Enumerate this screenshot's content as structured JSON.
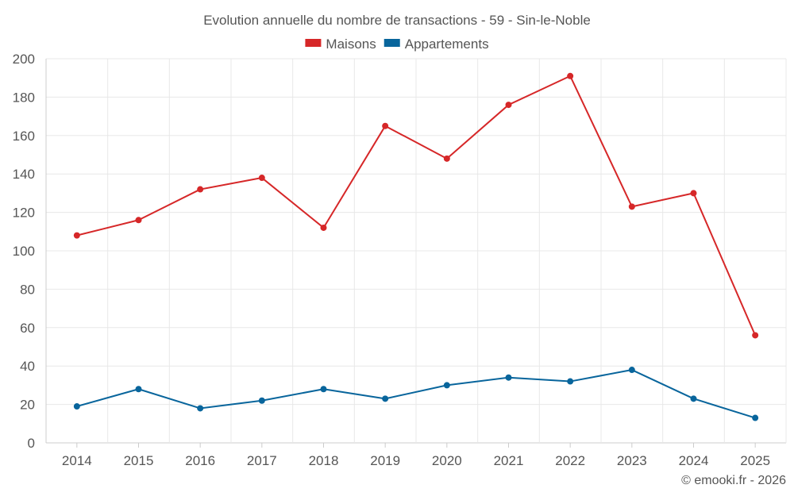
{
  "chart_data": {
    "type": "line",
    "title": "Evolution annuelle du nombre de transactions - 59 - Sin-le-Noble",
    "categories": [
      "2014",
      "2015",
      "2016",
      "2017",
      "2018",
      "2019",
      "2020",
      "2021",
      "2022",
      "2023",
      "2024",
      "2025"
    ],
    "series": [
      {
        "name": "Maisons",
        "color": "#d62728",
        "values": [
          108,
          116,
          132,
          138,
          112,
          165,
          148,
          176,
          191,
          123,
          130,
          56
        ]
      },
      {
        "name": "Appartements",
        "color": "#08659c",
        "values": [
          19,
          28,
          18,
          22,
          28,
          23,
          30,
          34,
          32,
          38,
          23,
          13
        ]
      }
    ],
    "ylim": [
      0,
      200
    ],
    "yticks": [
      0,
      20,
      40,
      60,
      80,
      100,
      120,
      140,
      160,
      180,
      200
    ],
    "xlabel": "",
    "ylabel": "",
    "grid": true,
    "legend": "top-center"
  },
  "credit": "© emooki.fr - 2026"
}
